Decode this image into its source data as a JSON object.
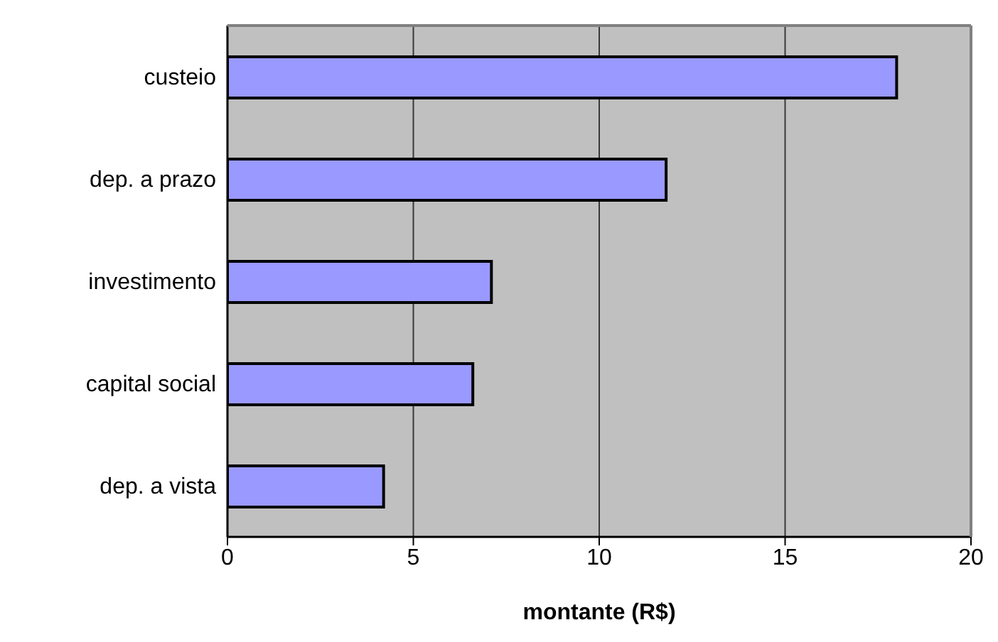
{
  "chart_data": {
    "type": "bar",
    "orientation": "horizontal",
    "xlabel": "montante (R$)",
    "categories": [
      "custeio",
      "dep. a prazo",
      "investimento",
      "capital social",
      "dep. a vista"
    ],
    "values": [
      18.0,
      11.8,
      7.1,
      6.6,
      4.2
    ],
    "color": "#9999ff",
    "xlim": [
      0,
      20
    ],
    "xticks": [
      0,
      5,
      10,
      15,
      20
    ],
    "grid": "x"
  }
}
